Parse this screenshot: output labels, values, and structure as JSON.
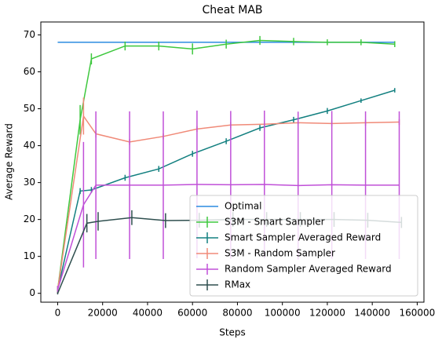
{
  "chart_data": {
    "type": "errorbar-line",
    "title": "Cheat MAB",
    "xlabel": "Steps",
    "ylabel": "Average Reward",
    "xlim": [
      -7500,
      163000
    ],
    "ylim": [
      -2.4,
      73.5
    ],
    "xticks": [
      0,
      20000,
      40000,
      60000,
      80000,
      100000,
      120000,
      140000,
      160000
    ],
    "yticks": [
      0,
      10,
      20,
      30,
      40,
      50,
      60,
      70
    ],
    "legend": "lower right",
    "series": [
      {
        "name": "Optimal",
        "color": "#2b8ce0",
        "x": [
          0,
          150000
        ],
        "values": [
          68,
          68
        ]
      },
      {
        "name": "S3M - Smart Sampler",
        "color": "#3ec83e",
        "x": [
          0,
          10000,
          15000,
          30000,
          45000,
          60000,
          75000,
          90000,
          105000,
          120000,
          135000,
          150000
        ],
        "values": [
          1,
          47,
          63.5,
          67,
          67,
          66.2,
          67.5,
          68.5,
          68.2,
          68,
          68,
          67.5
        ],
        "errors": [
          1,
          4,
          1.5,
          1.2,
          1.2,
          1.5,
          1.2,
          1.2,
          1,
          0.8,
          0.8,
          0.8
        ]
      },
      {
        "name": "Smart Sampler Averaged Reward",
        "color": "#138080",
        "x": [
          0,
          10000,
          15000,
          30000,
          45000,
          60000,
          75000,
          90000,
          105000,
          120000,
          135000,
          150000
        ],
        "values": [
          1,
          27.7,
          28,
          31.3,
          33.7,
          37.8,
          41.2,
          44.8,
          47,
          49.4,
          52.2,
          55
        ],
        "errors": [
          0.5,
          0.8,
          0.8,
          0.8,
          0.8,
          0.8,
          0.8,
          0.8,
          0.8,
          0.8,
          0.6,
          0.6
        ]
      },
      {
        "name": "S3M - Random Sampler",
        "color": "#f08a78",
        "x": [
          0,
          11500,
          17000,
          32000,
          47000,
          62000,
          77000,
          92000,
          107000,
          122000,
          137000,
          152000
        ],
        "values": [
          1,
          48,
          43.2,
          41,
          42.5,
          44.5,
          45.6,
          45.8,
          46.2,
          46,
          46.2,
          46.4
        ],
        "errors": [
          1,
          5,
          1,
          0.8,
          0.8,
          0.8,
          0.8,
          0.8,
          0.8,
          0.8,
          0.8,
          0.8
        ]
      },
      {
        "name": "Random Sampler Averaged Reward",
        "color": "#c050d8",
        "x": [
          0,
          11500,
          17000,
          32000,
          47000,
          62000,
          77000,
          92000,
          107000,
          122000,
          137000,
          152000
        ],
        "values": [
          1,
          24,
          29.3,
          29.3,
          29.3,
          29.5,
          29.4,
          29.5,
          29.2,
          29.4,
          29.3,
          29.3
        ],
        "errors": [
          1,
          17,
          20,
          20,
          20,
          20,
          20,
          20,
          20,
          20,
          20,
          20
        ]
      },
      {
        "name": "RMax",
        "color": "#2f4f4f",
        "x": [
          0,
          13000,
          18000,
          33000,
          48000,
          63000,
          78000,
          93000,
          108000,
          123000,
          138000,
          153000
        ],
        "values": [
          0,
          19,
          19.5,
          20.5,
          19.7,
          19.8,
          20,
          20,
          20,
          20,
          19.8,
          19.2
        ],
        "errors": [
          0.3,
          2.5,
          2.5,
          2,
          2,
          2,
          2,
          2,
          2,
          2,
          2,
          1.5
        ]
      }
    ]
  }
}
